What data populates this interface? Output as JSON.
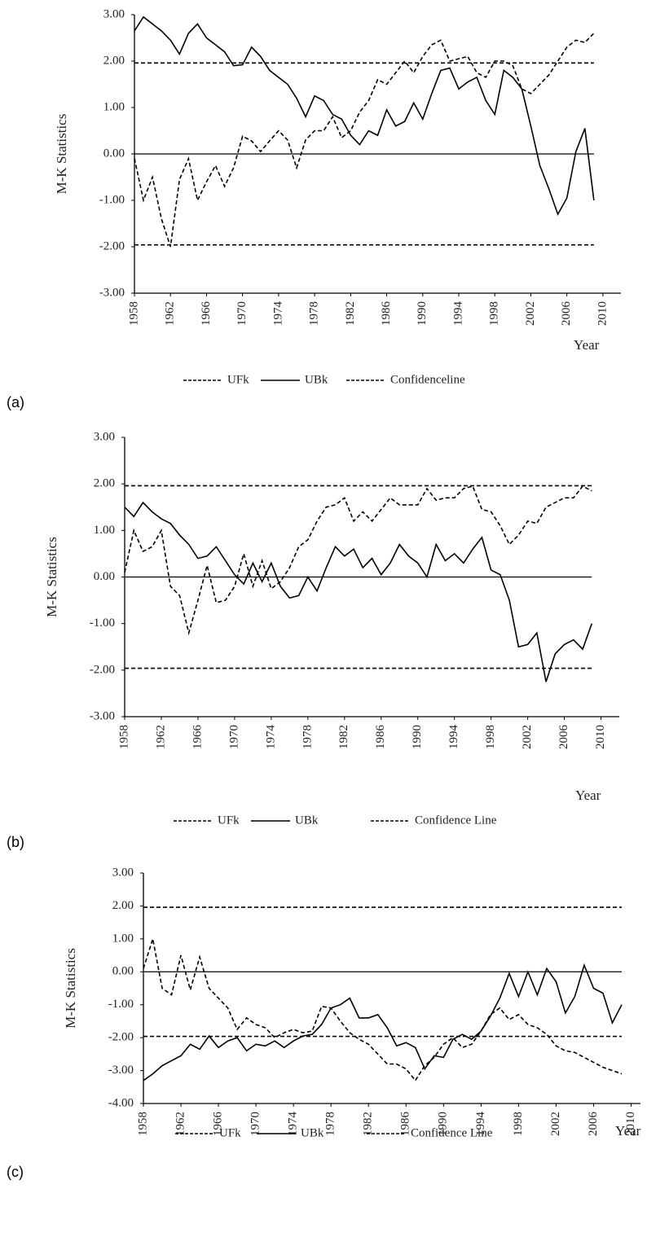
{
  "chart_data": [
    {
      "type": "line",
      "label": "(a)",
      "ylabel": "M-K Statistics",
      "xlabel": "Year",
      "x": [
        1958,
        1959,
        1960,
        1961,
        1962,
        1963,
        1964,
        1965,
        1966,
        1967,
        1968,
        1969,
        1970,
        1971,
        1972,
        1973,
        1974,
        1975,
        1976,
        1977,
        1978,
        1979,
        1980,
        1981,
        1982,
        1983,
        1984,
        1985,
        1986,
        1987,
        1988,
        1989,
        1990,
        1991,
        1992,
        1993,
        1994,
        1995,
        1996,
        1997,
        1998,
        1999,
        2000,
        2001,
        2002,
        2003,
        2004,
        2005,
        2006,
        2007,
        2008,
        2009
      ],
      "series": [
        {
          "name": "UFk",
          "color": "#000000",
          "style": "dashed",
          "values": [
            -0.1,
            -1.0,
            -0.5,
            -1.4,
            -2.0,
            -0.55,
            -0.1,
            -1.0,
            -0.6,
            -0.25,
            -0.7,
            -0.3,
            0.38,
            0.28,
            0.05,
            0.28,
            0.5,
            0.3,
            -0.3,
            0.3,
            0.5,
            0.5,
            0.8,
            0.35,
            0.5,
            0.9,
            1.15,
            1.6,
            1.5,
            1.75,
            2.0,
            1.75,
            2.1,
            2.35,
            2.45,
            2.0,
            2.05,
            2.1,
            1.75,
            1.65,
            2.0,
            2.0,
            1.9,
            1.4,
            1.3,
            1.5,
            1.7,
            2.0,
            2.3,
            2.45,
            2.4,
            2.6
          ]
        },
        {
          "name": "UBk",
          "color": "#000000",
          "style": "solid",
          "values": [
            2.65,
            2.95,
            2.8,
            2.65,
            2.45,
            2.15,
            2.6,
            2.8,
            2.5,
            2.35,
            2.2,
            1.9,
            1.92,
            2.3,
            2.1,
            1.8,
            1.65,
            1.5,
            1.2,
            0.8,
            1.25,
            1.15,
            0.85,
            0.75,
            0.4,
            0.2,
            0.5,
            0.4,
            0.95,
            0.6,
            0.7,
            1.1,
            0.75,
            1.3,
            1.8,
            1.85,
            1.4,
            1.55,
            1.65,
            1.15,
            0.85,
            1.8,
            1.65,
            1.4,
            0.6,
            -0.25,
            -0.75,
            -1.3,
            -0.95,
            0.05,
            0.55,
            -1.0
          ]
        },
        {
          "name": "Confidenceline",
          "color": "#000000",
          "style": "dashed",
          "levels": [
            1.96,
            -1.96
          ]
        }
      ],
      "xlim": [
        1958,
        2012
      ],
      "xticks": [
        1958,
        1962,
        1966,
        1970,
        1974,
        1978,
        1982,
        1986,
        1990,
        1994,
        1998,
        2002,
        2006,
        2010
      ],
      "ylim": [
        -3,
        3
      ],
      "yticks": [
        {
          "value": 3,
          "label": "3.00"
        },
        {
          "value": 2,
          "label": "2.00"
        },
        {
          "value": 1,
          "label": "1.00"
        },
        {
          "value": 0,
          "label": "0.00"
        },
        {
          "value": -1,
          "label": "-1.00"
        },
        {
          "value": -2,
          "label": "-2.00"
        },
        {
          "value": -3,
          "label": "-3.00"
        }
      ]
    },
    {
      "type": "line",
      "label": "(b)",
      "ylabel": "M-K Statistics",
      "xlabel": "Year",
      "x": [
        1958,
        1959,
        1960,
        1961,
        1962,
        1963,
        1964,
        1965,
        1966,
        1967,
        1968,
        1969,
        1970,
        1971,
        1972,
        1973,
        1974,
        1975,
        1976,
        1977,
        1978,
        1979,
        1980,
        1981,
        1982,
        1983,
        1984,
        1985,
        1986,
        1987,
        1988,
        1989,
        1990,
        1991,
        1992,
        1993,
        1994,
        1995,
        1996,
        1997,
        1998,
        1999,
        2000,
        2001,
        2002,
        2003,
        2004,
        2005,
        2006,
        2007,
        2008,
        2009
      ],
      "series": [
        {
          "name": "UFk",
          "color": "#000000",
          "style": "dashed",
          "values": [
            0.1,
            1.0,
            0.55,
            0.65,
            1.0,
            -0.2,
            -0.4,
            -1.2,
            -0.5,
            0.25,
            -0.55,
            -0.5,
            -0.2,
            0.5,
            -0.2,
            0.35,
            -0.25,
            -0.1,
            0.2,
            0.65,
            0.8,
            1.2,
            1.5,
            1.55,
            1.7,
            1.2,
            1.4,
            1.2,
            1.45,
            1.7,
            1.55,
            1.55,
            1.55,
            1.9,
            1.65,
            1.7,
            1.7,
            1.9,
            1.95,
            1.45,
            1.4,
            1.1,
            0.7,
            0.9,
            1.2,
            1.15,
            1.5,
            1.6,
            1.7,
            1.7,
            1.95,
            1.85
          ]
        },
        {
          "name": "UBk",
          "color": "#000000",
          "style": "solid",
          "values": [
            1.5,
            1.3,
            1.6,
            1.4,
            1.25,
            1.15,
            0.9,
            0.7,
            0.4,
            0.45,
            0.65,
            0.35,
            0.05,
            -0.15,
            0.3,
            -0.1,
            0.3,
            -0.2,
            -0.45,
            -0.4,
            0.0,
            -0.3,
            0.2,
            0.65,
            0.45,
            0.6,
            0.2,
            0.4,
            0.05,
            0.3,
            0.7,
            0.45,
            0.3,
            0.0,
            0.7,
            0.35,
            0.5,
            0.3,
            0.6,
            0.85,
            0.15,
            0.05,
            -0.5,
            -1.5,
            -1.45,
            -1.2,
            -2.25,
            -1.65,
            -1.45,
            -1.35,
            -1.55,
            -1.0
          ]
        },
        {
          "name": "Confidence Line",
          "color": "#000000",
          "style": "dashed",
          "levels": [
            1.96,
            -1.96
          ]
        }
      ],
      "xlim": [
        1958,
        2012
      ],
      "xticks": [
        1958,
        1962,
        1966,
        1970,
        1974,
        1978,
        1982,
        1986,
        1990,
        1994,
        1998,
        2002,
        2006,
        2010
      ],
      "ylim": [
        -3,
        3
      ],
      "yticks": [
        {
          "value": 3,
          "label": "3.00"
        },
        {
          "value": 2,
          "label": "2.00"
        },
        {
          "value": 1,
          "label": "1.00"
        },
        {
          "value": 0,
          "label": "0.00"
        },
        {
          "value": -1,
          "label": "-1.00"
        },
        {
          "value": -2,
          "label": "-2.00"
        },
        {
          "value": -3,
          "label": "-3.00"
        }
      ]
    },
    {
      "type": "line",
      "label": "(c)",
      "ylabel": "M-K Statistics",
      "xlabel": "Year",
      "x": [
        1958,
        1959,
        1960,
        1961,
        1962,
        1963,
        1964,
        1965,
        1966,
        1967,
        1968,
        1969,
        1970,
        1971,
        1972,
        1973,
        1974,
        1975,
        1976,
        1977,
        1978,
        1979,
        1980,
        1981,
        1982,
        1983,
        1984,
        1985,
        1986,
        1987,
        1988,
        1989,
        1990,
        1991,
        1992,
        1993,
        1994,
        1995,
        1996,
        1997,
        1998,
        1999,
        2000,
        2001,
        2002,
        2003,
        2004,
        2005,
        2006,
        2007,
        2008,
        2009
      ],
      "series": [
        {
          "name": "UFk",
          "color": "#000000",
          "style": "dashed",
          "values": [
            0.1,
            1.0,
            -0.5,
            -0.7,
            0.5,
            -0.55,
            0.45,
            -0.5,
            -0.8,
            -1.1,
            -1.75,
            -1.4,
            -1.6,
            -1.7,
            -2.0,
            -1.85,
            -1.75,
            -1.85,
            -1.8,
            -1.05,
            -1.1,
            -1.5,
            -1.85,
            -2.05,
            -2.2,
            -2.5,
            -2.8,
            -2.8,
            -2.95,
            -3.3,
            -2.85,
            -2.6,
            -2.2,
            -2.0,
            -2.3,
            -2.2,
            -1.8,
            -1.3,
            -1.1,
            -1.45,
            -1.3,
            -1.6,
            -1.7,
            -1.9,
            -2.25,
            -2.4,
            -2.45,
            -2.6,
            -2.75,
            -2.9,
            -3.0,
            -3.1
          ]
        },
        {
          "name": "UBk",
          "color": "#000000",
          "style": "solid",
          "values": [
            -3.3,
            -3.1,
            -2.85,
            -2.7,
            -2.55,
            -2.2,
            -2.35,
            -1.95,
            -2.3,
            -2.1,
            -2.0,
            -2.4,
            -2.2,
            -2.25,
            -2.1,
            -2.3,
            -2.1,
            -1.95,
            -1.9,
            -1.6,
            -1.1,
            -1.0,
            -0.8,
            -1.4,
            -1.4,
            -1.3,
            -1.7,
            -2.25,
            -2.15,
            -2.3,
            -2.95,
            -2.55,
            -2.6,
            -2.05,
            -1.9,
            -2.05,
            -1.8,
            -1.35,
            -0.8,
            -0.05,
            -0.75,
            0.0,
            -0.7,
            0.1,
            -0.3,
            -1.25,
            -0.75,
            0.2,
            -0.5,
            -0.65,
            -1.55,
            -1.0
          ]
        },
        {
          "name": "Confidence Line",
          "color": "#000000",
          "style": "dashed",
          "levels": [
            1.96,
            -1.96
          ]
        }
      ],
      "xlim": [
        1958,
        2011
      ],
      "xticks": [
        1958,
        1962,
        1966,
        1970,
        1974,
        1978,
        1982,
        1986,
        1990,
        1994,
        1998,
        2002,
        2006,
        2010
      ],
      "ylim": [
        -4,
        3
      ],
      "yticks": [
        {
          "value": 3,
          "label": "3.00"
        },
        {
          "value": 2,
          "label": "2.00"
        },
        {
          "value": 1,
          "label": "1.00"
        },
        {
          "value": 0,
          "label": "0.00"
        },
        {
          "value": -1,
          "label": "-1.00"
        },
        {
          "value": -2,
          "label": "-2.00"
        },
        {
          "value": -3,
          "label": "-3.00"
        },
        {
          "value": -4,
          "label": "-4.00"
        }
      ]
    }
  ]
}
